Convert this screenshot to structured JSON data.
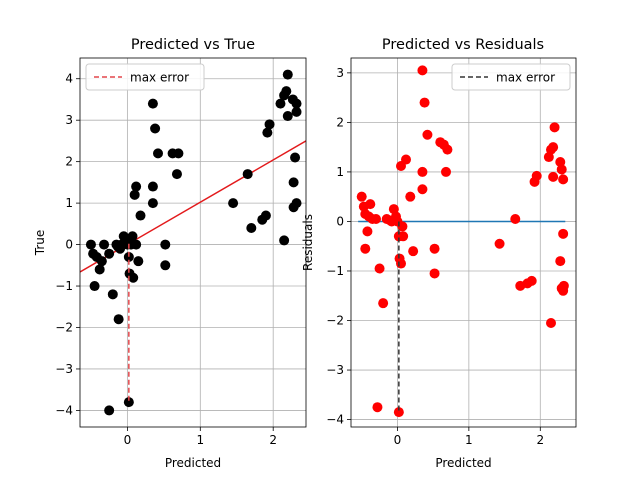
{
  "chart_data": [
    {
      "type": "scatter",
      "title": "Predicted vs True",
      "xlabel": "Predicted",
      "ylabel": "True",
      "xlim": [
        -0.65,
        2.45
      ],
      "ylim": [
        -4.4,
        4.5
      ],
      "xticks": [
        0,
        1,
        2
      ],
      "yticks": [
        -4,
        -3,
        -2,
        -1,
        0,
        1,
        2,
        3,
        4
      ],
      "grid": true,
      "legend_position": "upper-left",
      "legend_label": "max error",
      "colors": {
        "points": "#000000",
        "fit_line": "#e31a1c",
        "max_error": "#e3474b"
      },
      "points": [
        [
          -0.5,
          0.0
        ],
        [
          -0.47,
          -0.22
        ],
        [
          -0.42,
          -0.3
        ],
        [
          -0.38,
          -0.6
        ],
        [
          -0.35,
          -0.4
        ],
        [
          -0.45,
          -1.0
        ],
        [
          -0.32,
          0.0
        ],
        [
          -0.25,
          -0.22
        ],
        [
          -0.2,
          -1.2
        ],
        [
          -0.15,
          0.0
        ],
        [
          -0.13,
          -0.05
        ],
        [
          -0.1,
          -0.1
        ],
        [
          -0.08,
          0.0
        ],
        [
          -0.05,
          0.2
        ],
        [
          -0.02,
          0.1
        ],
        [
          0.0,
          0.0
        ],
        [
          0.02,
          -0.3
        ],
        [
          0.05,
          0.0
        ],
        [
          0.07,
          0.2
        ],
        [
          0.03,
          -0.7
        ],
        [
          0.08,
          -0.8
        ],
        [
          0.12,
          0.0
        ],
        [
          0.15,
          -0.4
        ],
        [
          0.1,
          1.2
        ],
        [
          0.12,
          1.4
        ],
        [
          0.18,
          0.7
        ],
        [
          -0.25,
          -4.0
        ],
        [
          0.02,
          -3.8
        ],
        [
          -0.12,
          -1.8
        ],
        [
          0.35,
          3.4
        ],
        [
          0.38,
          2.8
        ],
        [
          0.42,
          2.2
        ],
        [
          0.35,
          1.4
        ],
        [
          0.35,
          1.0
        ],
        [
          0.52,
          0.0
        ],
        [
          0.52,
          -0.5
        ],
        [
          0.62,
          2.2
        ],
        [
          0.7,
          2.2
        ],
        [
          0.68,
          1.7
        ],
        [
          1.45,
          1.0
        ],
        [
          1.65,
          1.7
        ],
        [
          1.7,
          0.4
        ],
        [
          1.85,
          0.6
        ],
        [
          1.9,
          0.7
        ],
        [
          1.92,
          2.7
        ],
        [
          1.95,
          2.9
        ],
        [
          2.1,
          3.4
        ],
        [
          2.15,
          3.6
        ],
        [
          2.18,
          3.7
        ],
        [
          2.2,
          4.1
        ],
        [
          2.2,
          3.1
        ],
        [
          2.27,
          3.5
        ],
        [
          2.32,
          3.4
        ],
        [
          2.32,
          3.2
        ],
        [
          2.28,
          1.5
        ],
        [
          2.3,
          2.1
        ],
        [
          2.28,
          0.9
        ],
        [
          2.32,
          1.0
        ],
        [
          2.15,
          0.1
        ]
      ],
      "fit_line": [
        [
          -0.65,
          -0.66
        ],
        [
          2.45,
          2.5
        ]
      ],
      "max_error_segment": [
        [
          0.02,
          0.02
        ],
        [
          0.02,
          -3.8
        ]
      ]
    },
    {
      "type": "scatter",
      "title": "Predicted vs Residuals",
      "xlabel": "Predicted",
      "ylabel": "Residuals",
      "xlim": [
        -0.65,
        2.5
      ],
      "ylim": [
        -4.15,
        3.3
      ],
      "xticks": [
        0,
        1,
        2
      ],
      "yticks": [
        -4,
        -3,
        -2,
        -1,
        0,
        1,
        2,
        3
      ],
      "grid": true,
      "legend_position": "upper-right",
      "legend_label": "max error",
      "colors": {
        "points": "#ff0000",
        "zero_line": "#1f77b4",
        "max_error": "#333333"
      },
      "points": [
        [
          -0.5,
          0.5
        ],
        [
          -0.47,
          0.3
        ],
        [
          -0.45,
          0.15
        ],
        [
          -0.42,
          -0.2
        ],
        [
          -0.45,
          -0.55
        ],
        [
          -0.38,
          0.35
        ],
        [
          -0.35,
          0.05
        ],
        [
          -0.4,
          0.1
        ],
        [
          -0.3,
          0.05
        ],
        [
          -0.25,
          -0.95
        ],
        [
          -0.2,
          -1.65
        ],
        [
          -0.28,
          -3.75
        ],
        [
          -0.15,
          0.05
        ],
        [
          -0.1,
          0.02
        ],
        [
          -0.08,
          0.0
        ],
        [
          -0.05,
          0.25
        ],
        [
          -0.02,
          0.1
        ],
        [
          0.0,
          0.0
        ],
        [
          0.02,
          -0.3
        ],
        [
          0.03,
          -0.75
        ],
        [
          0.05,
          -0.85
        ],
        [
          0.07,
          -0.1
        ],
        [
          0.08,
          -0.3
        ],
        [
          0.05,
          1.12
        ],
        [
          0.12,
          1.25
        ],
        [
          0.18,
          0.5
        ],
        [
          0.22,
          -0.6
        ],
        [
          0.02,
          -3.85
        ],
        [
          0.35,
          3.05
        ],
        [
          0.38,
          2.4
        ],
        [
          0.42,
          1.75
        ],
        [
          0.35,
          1.0
        ],
        [
          0.35,
          0.65
        ],
        [
          0.52,
          -0.55
        ],
        [
          0.52,
          -1.05
        ],
        [
          0.6,
          1.6
        ],
        [
          0.65,
          1.55
        ],
        [
          0.7,
          1.45
        ],
        [
          0.68,
          1.0
        ],
        [
          1.43,
          -0.45
        ],
        [
          1.65,
          0.05
        ],
        [
          1.72,
          -1.3
        ],
        [
          1.82,
          -1.25
        ],
        [
          1.88,
          -1.2
        ],
        [
          1.92,
          0.8
        ],
        [
          1.95,
          0.92
        ],
        [
          2.12,
          1.3
        ],
        [
          2.15,
          1.45
        ],
        [
          2.18,
          1.5
        ],
        [
          2.2,
          1.9
        ],
        [
          2.18,
          0.9
        ],
        [
          2.15,
          -2.05
        ],
        [
          2.28,
          1.2
        ],
        [
          2.3,
          1.05
        ],
        [
          2.32,
          0.85
        ],
        [
          2.28,
          -0.8
        ],
        [
          2.32,
          -0.25
        ],
        [
          2.3,
          -1.35
        ],
        [
          2.32,
          -1.4
        ],
        [
          2.33,
          -1.3
        ]
      ],
      "zero_line": [
        [
          -0.55,
          0.0
        ],
        [
          2.35,
          0.0
        ]
      ],
      "max_error_segment": [
        [
          0.02,
          0.0
        ],
        [
          0.02,
          -3.85
        ]
      ]
    }
  ]
}
